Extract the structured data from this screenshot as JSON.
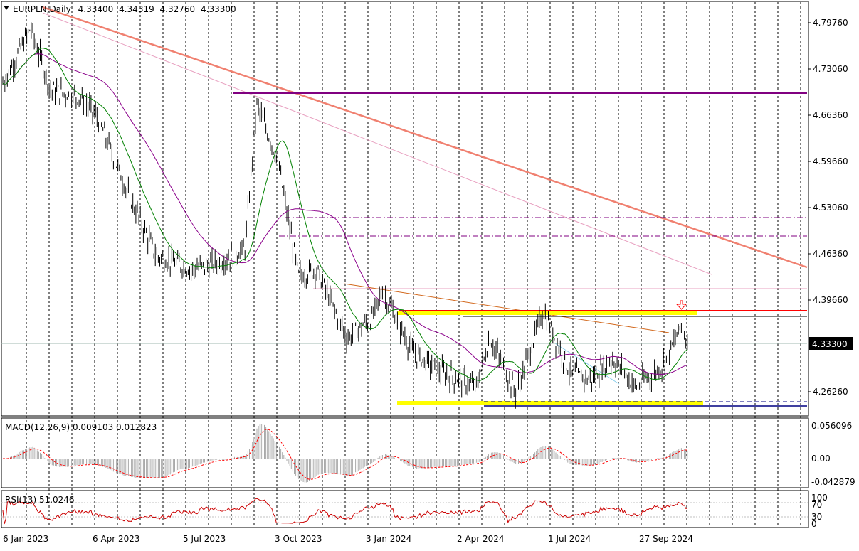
{
  "header": {
    "symbol": "EURPLN",
    "timeframe": "Daily",
    "open": "4.33400",
    "high": "4.34319",
    "low": "4.32760",
    "close": "4.33300"
  },
  "main_panel": {
    "price_ticks": [
      "4.79760",
      "4.73060",
      "4.66360",
      "4.59660",
      "4.53060",
      "4.46360",
      "4.39660",
      "4.26260"
    ],
    "current_price_label": "4.33300",
    "date_labels": [
      "6 Jan 2023",
      "6 Apr 2023",
      "5 Jul 2023",
      "3 Oct 2023",
      "3 Jan 2024",
      "2 Apr 2024",
      "1 Jul 2024",
      "27 Sep 2024"
    ]
  },
  "macd_panel": {
    "title": "MACD(12,26,9) 0.009103 0.012823",
    "ticks": [
      "0.056096",
      "0.00",
      "-0.042879"
    ]
  },
  "rsi_panel": {
    "title": "RSI(13) 51.0246",
    "ticks": [
      "100",
      "70",
      "30",
      "0"
    ]
  },
  "colors": {
    "candles": "#000000",
    "ma_fast": "#008000",
    "ma_slow": "#8b008b",
    "downtrend": "#f08070",
    "support_zone": "#ffff00",
    "resistance": "#ff0000",
    "macd_signal": "#ff0000",
    "rsi_line": "#cc0000"
  },
  "chart_data": {
    "type": "candlestick",
    "series": [
      {
        "x": "2023-01-06",
        "y": 4.71
      },
      {
        "x": "2023-02-01",
        "y": 4.79
      },
      {
        "x": "2023-02-20",
        "y": 4.7
      },
      {
        "x": "2023-03-20",
        "y": 4.69
      },
      {
        "x": "2023-04-06",
        "y": 4.66
      },
      {
        "x": "2023-05-05",
        "y": 4.55
      },
      {
        "x": "2023-06-01",
        "y": 4.46
      },
      {
        "x": "2023-07-05",
        "y": 4.44
      },
      {
        "x": "2023-08-01",
        "y": 4.45
      },
      {
        "x": "2023-08-25",
        "y": 4.47
      },
      {
        "x": "2023-09-05",
        "y": 4.68
      },
      {
        "x": "2023-09-25",
        "y": 4.6
      },
      {
        "x": "2023-10-03",
        "y": 4.53
      },
      {
        "x": "2023-10-15",
        "y": 4.43
      },
      {
        "x": "2023-11-01",
        "y": 4.44
      },
      {
        "x": "2023-12-01",
        "y": 4.34
      },
      {
        "x": "2023-12-25",
        "y": 4.37
      },
      {
        "x": "2024-01-03",
        "y": 4.41
      },
      {
        "x": "2024-02-01",
        "y": 4.32
      },
      {
        "x": "2024-03-01",
        "y": 4.29
      },
      {
        "x": "2024-04-02",
        "y": 4.27
      },
      {
        "x": "2024-04-15",
        "y": 4.34
      },
      {
        "x": "2024-05-10",
        "y": 4.26
      },
      {
        "x": "2024-06-05",
        "y": 4.38
      },
      {
        "x": "2024-07-01",
        "y": 4.29
      },
      {
        "x": "2024-07-20",
        "y": 4.28
      },
      {
        "x": "2024-08-10",
        "y": 4.31
      },
      {
        "x": "2024-09-01",
        "y": 4.27
      },
      {
        "x": "2024-09-27",
        "y": 4.3
      },
      {
        "x": "2024-10-10",
        "y": 4.34
      },
      {
        "x": "2024-10-15",
        "y": 4.36
      },
      {
        "x": "2024-10-21",
        "y": 4.333
      }
    ]
  }
}
